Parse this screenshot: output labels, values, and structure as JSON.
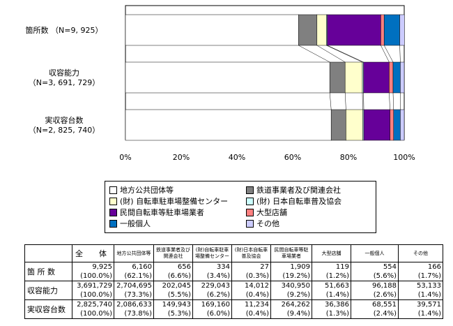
{
  "chart_data": {
    "type": "bar",
    "orientation": "horizontal",
    "stacked": "percent",
    "categories": [
      "箇所数（N=9,925）",
      "収容能力（N=3,691,729）",
      "実収容台数（N=2,825,740）"
    ],
    "category_lines": [
      [
        "箇所数 （N=9, 925）"
      ],
      [
        "収容能力",
        "（N=3, 691, 729）"
      ],
      [
        "実収容台数",
        "（N=2, 825, 740）"
      ]
    ],
    "series": [
      {
        "name": "地方公共団体等",
        "color": "#ffffff",
        "values": [
          62.1,
          73.3,
          73.8
        ]
      },
      {
        "name": "鉄道事業者及び関連会社",
        "color": "#808080",
        "values": [
          6.6,
          5.5,
          5.3
        ]
      },
      {
        "name": "(財) 自転車駐車場整備センター",
        "color": "#ffffcc",
        "values": [
          3.4,
          6.2,
          6.0
        ]
      },
      {
        "name": "(財) 日本自転車普及協会",
        "color": "#ccffff",
        "values": [
          0.3,
          0.4,
          0.4
        ]
      },
      {
        "name": "民間自転車等駐車場業者",
        "color": "#660099",
        "values": [
          19.2,
          9.2,
          9.4
        ]
      },
      {
        "name": "大型店舗",
        "color": "#ff8080",
        "values": [
          1.2,
          1.4,
          1.3
        ]
      },
      {
        "name": "一般個人",
        "color": "#0070c0",
        "values": [
          5.6,
          2.6,
          2.4
        ]
      },
      {
        "name": "その他",
        "color": "#ccccff",
        "values": [
          1.7,
          1.4,
          1.4
        ]
      }
    ],
    "x_ticks": [
      "0%",
      "20%",
      "40%",
      "60%",
      "80%",
      "100%"
    ],
    "xlim": [
      0,
      100
    ],
    "legend": "bottom",
    "grid": false
  },
  "table": {
    "headers": [
      "全　体",
      "地方公共団体等",
      "鉄道事業者及び関連会社",
      "(財)自転車駐車場整備センター",
      "(財)日本自転車普及協会",
      "民間自転車等駐車場業者",
      "大型店舗",
      "一般個人",
      "その他"
    ],
    "rows": [
      {
        "label": "箇 所 数",
        "values": [
          "9,925",
          "6,160",
          "656",
          "334",
          "27",
          "1,909",
          "119",
          "554",
          "166"
        ],
        "percents": [
          "(100.0%)",
          "(62.1%)",
          "(6.6%)",
          "(3.4%)",
          "(0.3%)",
          "(19.2%)",
          "(1.2%)",
          "(5.6%)",
          "(1.7%)"
        ]
      },
      {
        "label": "収容能力",
        "values": [
          "3,691,729",
          "2,704,695",
          "202,045",
          "229,043",
          "14,012",
          "340,950",
          "51,663",
          "96,188",
          "53,133"
        ],
        "percents": [
          "(100.0%)",
          "(73.3%)",
          "(5.5%)",
          "(6.2%)",
          "(0.4%)",
          "(9.2%)",
          "(1.4%)",
          "(2.6%)",
          "(1.4%)"
        ]
      },
      {
        "label": "実収容台数",
        "values": [
          "2,825,740",
          "2,086,633",
          "149,943",
          "169,160",
          "11,234",
          "264,262",
          "36,386",
          "68,551",
          "39,571"
        ],
        "percents": [
          "(100.0%)",
          "(73.8%)",
          "(5.3%)",
          "(6.0%)",
          "(0.4%)",
          "(9.4%)",
          "(1.3%)",
          "(2.4%)",
          "(1.4%)"
        ]
      }
    ]
  }
}
